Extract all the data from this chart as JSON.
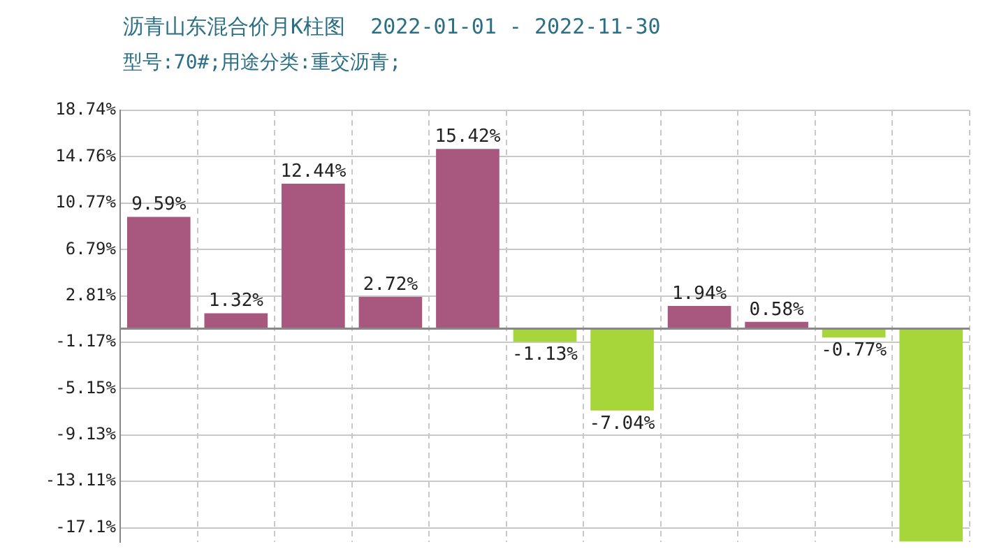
{
  "chart_data": {
    "type": "bar",
    "title": "沥青山东混合价月K柱图",
    "subtitle": "2022-01-01 - 2022-11-30",
    "annotations": [
      "型号:70#;用途分类:重交沥青;"
    ],
    "categories": [
      null,
      null,
      null,
      null,
      null,
      null,
      null,
      null,
      null,
      null,
      null
    ],
    "values": [
      9.59,
      1.32,
      12.44,
      2.72,
      15.42,
      -1.13,
      -7.04,
      1.94,
      0.58,
      -0.77,
      -18.3
    ],
    "colors": [
      "#a8577e",
      "#a8577e",
      "#a8577e",
      "#a8577e",
      "#a8577e",
      "#a6d63a",
      "#a6d63a",
      "#a8577e",
      "#a8577e",
      "#a6d63a",
      "#a6d63a"
    ],
    "value_labels": [
      "9.59%",
      "1.32%",
      "12.44%",
      "2.72%",
      "15.42%",
      "-1.13%",
      "-7.04%",
      "1.94%",
      "0.58%",
      "-0.77%",
      null
    ],
    "ylim": [
      -18.3,
      18.74
    ],
    "yticks": [
      {
        "value": 18.74,
        "label": "18.74%"
      },
      {
        "value": 14.76,
        "label": "14.76%"
      },
      {
        "value": 10.77,
        "label": "10.77%"
      },
      {
        "value": 6.79,
        "label": "6.79%"
      },
      {
        "value": 2.81,
        "label": "2.81%"
      },
      {
        "value": -1.17,
        "label": "-1.17%"
      },
      {
        "value": -5.15,
        "label": "-5.15%"
      },
      {
        "value": -9.13,
        "label": "-9.13%"
      },
      {
        "value": -13.11,
        "label": "-13.11%"
      },
      {
        "value": -17.1,
        "label": "-17.1%"
      }
    ],
    "grid": true,
    "tick_labels": "y",
    "legend": false
  }
}
